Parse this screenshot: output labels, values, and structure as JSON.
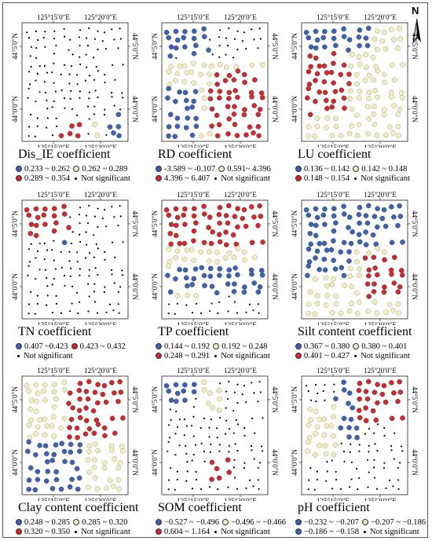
{
  "axis_labels": {
    "lon_left": "125°15′0″E",
    "lon_right": "125°20′0″E",
    "lat_top": "44°5′0″N",
    "lat_bottom": "44°0′0″N"
  },
  "north_arrow": {
    "letter": "N",
    "icon": "north-arrow-icon"
  },
  "colors": {
    "blue": "#3a63b5",
    "yellow": "#f0edc6",
    "red": "#d0282c",
    "dot": "#000000"
  },
  "panels": [
    {
      "id": "dis-ie",
      "title": "Dis_IE coefficient",
      "pattern": "sparse-bottom",
      "legend": [
        [
          {
            "c": "blue",
            "t": "0.233 ~ 0.262"
          },
          {
            "c": "yellow",
            "t": "0.262 ~ 0.289"
          }
        ],
        [
          {
            "c": "red",
            "t": "0.289 ~ 0.354"
          },
          {
            "c": "dot",
            "t": "Not significant"
          }
        ]
      ]
    },
    {
      "id": "rd",
      "title": "RD coefficient",
      "pattern": "rd",
      "legend": [
        [
          {
            "c": "blue",
            "t": "-3.589 ~ -0.107"
          },
          {
            "c": "yellow",
            "t": "0.591~ 4.396"
          }
        ],
        [
          {
            "c": "red",
            "t": "4.396 ~ 6.407"
          },
          {
            "c": "dot",
            "t": "Not significant"
          }
        ]
      ]
    },
    {
      "id": "lu",
      "title": "LU coefficient",
      "pattern": "lu",
      "legend": [
        [
          {
            "c": "blue",
            "t": "0.136 ~ 0.142"
          },
          {
            "c": "yellow",
            "t": "0.142 ~ 0.148"
          }
        ],
        [
          {
            "c": "red",
            "t": "0.148 ~ 0.154"
          },
          {
            "c": "dot",
            "t": "Not significant"
          }
        ]
      ]
    },
    {
      "id": "tn",
      "title": "TN coefficient",
      "pattern": "tn",
      "legend": [
        [
          {
            "c": "blue",
            "t": "0.407 ~0.423"
          },
          {
            "c": "red",
            "t": "0.423 ~ 0.432"
          }
        ],
        [
          {
            "c": "dot",
            "t": "Not significant"
          }
        ]
      ]
    },
    {
      "id": "tp",
      "title": "TP coefficient",
      "pattern": "tp",
      "legend": [
        [
          {
            "c": "blue",
            "t": "0.144 ~ 0.192"
          },
          {
            "c": "yellow",
            "t": "0.192 ~ 0.248"
          }
        ],
        [
          {
            "c": "red",
            "t": "0.248 ~ 0.291"
          },
          {
            "c": "dot",
            "t": "Not significant"
          }
        ]
      ]
    },
    {
      "id": "silt",
      "title": "Silt content coefficient",
      "pattern": "silt",
      "legend": [
        [
          {
            "c": "blue",
            "t": "0.367 ~ 0.380"
          },
          {
            "c": "yellow",
            "t": "0.380 ~ 0.401"
          }
        ],
        [
          {
            "c": "red",
            "t": "0.401 ~ 0.427"
          },
          {
            "c": "dot",
            "t": "Not significant"
          }
        ]
      ]
    },
    {
      "id": "clay",
      "title": "Clay content coefficient",
      "pattern": "clay",
      "legend": [
        [
          {
            "c": "blue",
            "t": "0.248 ~ 0.285"
          },
          {
            "c": "yellow",
            "t": "0.285 ~ 0.320"
          }
        ],
        [
          {
            "c": "red",
            "t": "0.320 ~ 0.350"
          },
          {
            "c": "dot",
            "t": "Not significant"
          }
        ]
      ]
    },
    {
      "id": "som",
      "title": "SOM coefficient",
      "pattern": "som",
      "legend": [
        [
          {
            "c": "blue",
            "t": "−0.527 ~ −0.496"
          },
          {
            "c": "yellow",
            "t": "−0.496 ~ −0.466"
          }
        ],
        [
          {
            "c": "red",
            "t": "0.604 ~ 1.164"
          },
          {
            "c": "dot",
            "t": "Not significant"
          }
        ]
      ]
    },
    {
      "id": "ph",
      "title": "pH coefficient",
      "pattern": "ph",
      "legend": [
        [
          {
            "c": "blue",
            "t": "−0.232 ~ −0.207"
          },
          {
            "c": "yellow",
            "t": "−0.207 ~ −0.186"
          }
        ],
        [
          {
            "c": "blue",
            "t": "−0.186 ~ −0.158"
          },
          {
            "c": "dot",
            "t": "Not significant"
          }
        ]
      ]
    }
  ]
}
